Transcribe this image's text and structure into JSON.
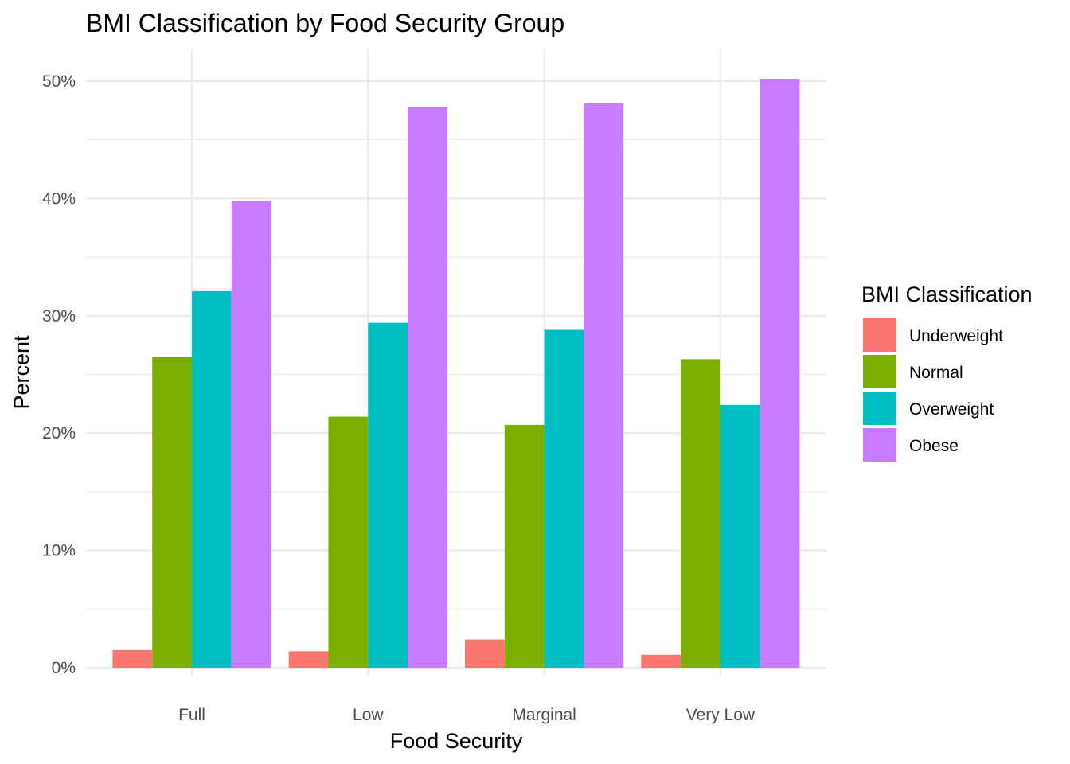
{
  "chart_data": {
    "type": "bar",
    "title": "BMI Classification by Food Security Group",
    "xlabel": "Food Security",
    "ylabel": "Percent",
    "categories": [
      "Full",
      "Low",
      "Marginal",
      "Very Low"
    ],
    "ylim": [
      0,
      52.7
    ],
    "yticks": [
      0,
      10,
      20,
      30,
      40,
      50
    ],
    "ytick_labels": [
      "0%",
      "10%",
      "20%",
      "30%",
      "40%",
      "50%"
    ],
    "grid": true,
    "legend": {
      "title": "BMI Classification",
      "position": "right"
    },
    "series": [
      {
        "name": "Underweight",
        "color": "#F8766D",
        "values": [
          1.5,
          1.4,
          2.4,
          1.1
        ]
      },
      {
        "name": "Normal",
        "color": "#7CAE00",
        "values": [
          26.5,
          21.4,
          20.7,
          26.3
        ]
      },
      {
        "name": "Overweight",
        "color": "#00BFC4",
        "values": [
          32.1,
          29.4,
          28.8,
          22.4
        ]
      },
      {
        "name": "Obese",
        "color": "#C77CFF",
        "values": [
          39.8,
          47.8,
          48.1,
          50.2
        ]
      }
    ]
  }
}
